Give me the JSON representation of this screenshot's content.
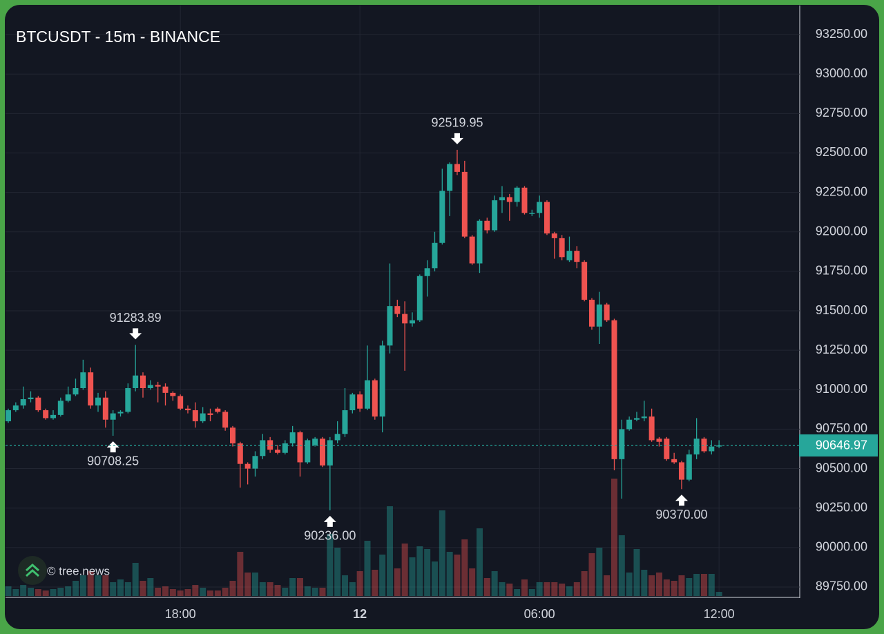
{
  "chart_data": {
    "type": "candlestick",
    "title": "BTCUSDT - 15m - BINANCE",
    "watermark": "© tree.news",
    "x": [
      "12:15",
      "12:30",
      "12:45",
      "13:00",
      "13:15",
      "13:30",
      "13:45",
      "14:00",
      "14:15",
      "14:30",
      "14:45",
      "15:00",
      "15:15",
      "15:30",
      "15:45",
      "16:00",
      "16:15",
      "16:30",
      "16:45",
      "17:00",
      "17:15",
      "17:30",
      "17:45",
      "18:00",
      "18:15",
      "18:30",
      "18:45",
      "19:00",
      "19:15",
      "19:30",
      "19:45",
      "20:00",
      "20:15",
      "20:30",
      "20:45",
      "21:00",
      "21:15",
      "21:30",
      "21:45",
      "22:00",
      "22:15",
      "22:30",
      "22:45",
      "23:00",
      "23:15",
      "23:30",
      "23:45",
      "00:00",
      "00:15",
      "00:30",
      "00:45",
      "01:00",
      "01:15",
      "01:30",
      "01:45",
      "02:00",
      "02:15",
      "02:30",
      "02:45",
      "03:00",
      "03:15",
      "03:30",
      "03:45",
      "04:00",
      "04:15",
      "04:30",
      "04:45",
      "05:00",
      "05:15",
      "05:30",
      "05:45",
      "06:00",
      "06:15",
      "06:30",
      "06:45",
      "07:00",
      "07:15",
      "07:30",
      "07:45",
      "08:00",
      "08:15",
      "08:30",
      "08:45",
      "09:00",
      "09:15",
      "09:30",
      "09:45",
      "10:00",
      "10:15",
      "10:30",
      "10:45",
      "11:00",
      "11:15",
      "11:30",
      "11:45",
      "12:00"
    ],
    "open": [
      90800,
      90870,
      90900,
      90940,
      90950,
      90870,
      90820,
      90840,
      90930,
      90970,
      91010,
      91110,
      90900,
      90950,
      90810,
      90850,
      90860,
      91010,
      91090,
      91010,
      91030,
      91020,
      90980,
      90960,
      90880,
      90870,
      90800,
      90850,
      90880,
      90860,
      90760,
      90660,
      90530,
      90500,
      90580,
      90680,
      90620,
      90600,
      90660,
      90730,
      90540,
      90650,
      90690,
      90520,
      90680,
      90720,
      90870,
      90970,
      90880,
      91060,
      90830,
      91280,
      91530,
      91480,
      91420,
      91440,
      91720,
      91770,
      91930,
      92260,
      92430,
      92380,
      91970,
      91800,
      92070,
      92010,
      92200,
      92220,
      92190,
      92280,
      92120,
      92120,
      92190,
      91990,
      91960,
      91820,
      91880,
      91810,
      91570,
      91400,
      91540,
      91440,
      90560,
      90750,
      90810,
      90820,
      90830,
      90690,
      90690,
      90560,
      90540,
      90430,
      90590,
      90690,
      90610,
      90640
    ],
    "high": [
      90880,
      90920,
      91020,
      90990,
      90960,
      90880,
      90870,
      90950,
      91020,
      91070,
      91190,
      91140,
      90980,
      90990,
      90870,
      90870,
      91040,
      91283.89,
      91110,
      91060,
      91050,
      91040,
      90990,
      90970,
      90900,
      90920,
      90890,
      90880,
      90890,
      90870,
      90770,
      90670,
      90540,
      90610,
      90720,
      90700,
      90650,
      90680,
      90770,
      90740,
      90690,
      90700,
      90700,
      90700,
      90800,
      91010,
      90980,
      90990,
      91280,
      91070,
      91310,
      91800,
      91570,
      91560,
      91490,
      91730,
      91820,
      92000,
      92400,
      92440,
      92519.95,
      92450,
      91980,
      92080,
      92090,
      92230,
      92290,
      92240,
      92290,
      92290,
      92140,
      92230,
      92200,
      92000,
      91980,
      91970,
      91910,
      91820,
      91580,
      91620,
      91550,
      91450,
      90810,
      90830,
      90860,
      90930,
      90880,
      90700,
      90700,
      90600,
      90550,
      90620,
      90820,
      90700,
      90680,
      90680
    ],
    "low": [
      90790,
      90860,
      90880,
      90920,
      90860,
      90810,
      90810,
      90830,
      90920,
      90960,
      91000,
      90880,
      90860,
      90760,
      90708.25,
      90830,
      90850,
      90990,
      90950,
      91000,
      90920,
      90900,
      90930,
      90870,
      90850,
      90760,
      90790,
      90800,
      90850,
      90740,
      90640,
      90380,
      90400,
      90450,
      90560,
      90600,
      90590,
      90590,
      90640,
      90450,
      90530,
      90640,
      90510,
      90236,
      90660,
      90700,
      90850,
      90860,
      90870,
      90810,
      90730,
      91230,
      91460,
      91120,
      91400,
      91430,
      91590,
      91750,
      91920,
      92100,
      92360,
      91960,
      91790,
      91740,
      91990,
      92000,
      92120,
      92070,
      92160,
      92110,
      92100,
      92090,
      91980,
      91830,
      91820,
      91810,
      91770,
      91560,
      91380,
      91290,
      91430,
      90490,
      90310,
      90740,
      90800,
      90800,
      90670,
      90640,
      90550,
      90530,
      90370,
      90420,
      90560,
      90600,
      90590,
      90630
    ],
    "close": [
      90870,
      90900,
      90940,
      90950,
      90870,
      90820,
      90840,
      90930,
      90970,
      91010,
      91110,
      90900,
      90950,
      90810,
      90850,
      90860,
      91010,
      91090,
      91010,
      91030,
      91020,
      90980,
      90960,
      90880,
      90870,
      90800,
      90850,
      90840,
      90860,
      90760,
      90660,
      90530,
      90500,
      90580,
      90680,
      90620,
      90600,
      90660,
      90730,
      90540,
      90680,
      90690,
      90520,
      90680,
      90720,
      90870,
      90970,
      90880,
      91060,
      90830,
      91280,
      91530,
      91480,
      91420,
      91440,
      91720,
      91770,
      91930,
      92260,
      92430,
      92380,
      91970,
      91800,
      92070,
      92010,
      92200,
      92220,
      92190,
      92280,
      92120,
      92120,
      92190,
      91990,
      91960,
      91840,
      91880,
      91810,
      91570,
      91400,
      91540,
      91440,
      90560,
      90750,
      90810,
      90820,
      90830,
      90680,
      90670,
      90560,
      90540,
      90430,
      90590,
      90690,
      90610,
      90640,
      90646.97
    ],
    "volume": [
      14,
      10,
      16,
      12,
      10,
      8,
      10,
      12,
      14,
      22,
      30,
      36,
      30,
      30,
      20,
      24,
      20,
      48,
      22,
      26,
      12,
      14,
      10,
      8,
      10,
      16,
      12,
      8,
      8,
      12,
      22,
      64,
      34,
      34,
      20,
      20,
      16,
      12,
      26,
      26,
      14,
      12,
      12,
      90,
      70,
      30,
      20,
      36,
      80,
      38,
      60,
      130,
      40,
      76,
      56,
      72,
      68,
      50,
      124,
      64,
      60,
      82,
      40,
      98,
      26,
      36,
      20,
      18,
      10,
      24,
      10,
      20,
      20,
      20,
      18,
      14,
      20,
      36,
      62,
      70,
      30,
      170,
      88,
      34,
      68,
      38,
      30,
      34,
      24,
      22,
      30,
      26,
      32,
      32,
      32,
      6
    ],
    "high_labels": [
      null,
      null,
      null,
      null,
      null,
      null,
      null,
      null,
      null,
      null,
      null,
      null,
      null,
      null,
      null,
      null,
      null,
      "91283.89",
      null,
      null,
      null,
      null,
      null,
      null,
      null,
      null,
      null,
      null,
      null,
      null,
      null,
      null,
      null,
      null,
      null,
      null,
      null,
      null,
      null,
      null,
      null,
      null,
      null,
      null,
      null,
      null,
      null,
      null,
      null,
      null,
      null,
      null,
      null,
      null,
      null,
      null,
      null,
      null,
      null,
      null,
      "92519.95",
      null,
      null,
      null,
      null,
      null,
      null,
      null,
      null,
      null,
      null,
      null,
      null,
      null,
      null,
      null,
      null,
      null,
      null,
      null,
      null,
      null,
      null,
      null,
      null,
      null,
      null,
      null,
      null,
      null,
      null,
      null,
      null,
      null,
      null,
      null
    ],
    "low_labels": [
      null,
      null,
      null,
      null,
      null,
      null,
      null,
      null,
      null,
      null,
      null,
      null,
      null,
      null,
      "90708.25",
      null,
      null,
      null,
      null,
      null,
      null,
      null,
      null,
      null,
      null,
      null,
      null,
      null,
      null,
      null,
      null,
      null,
      null,
      null,
      null,
      null,
      null,
      null,
      null,
      null,
      null,
      null,
      null,
      "90236.00",
      null,
      null,
      null,
      null,
      null,
      null,
      null,
      null,
      null,
      null,
      null,
      null,
      null,
      null,
      null,
      null,
      null,
      null,
      null,
      null,
      null,
      null,
      null,
      null,
      null,
      null,
      null,
      null,
      null,
      null,
      null,
      null,
      null,
      null,
      null,
      null,
      null,
      null,
      null,
      null,
      null,
      null,
      null,
      null,
      null,
      null,
      "90370.00",
      null,
      null,
      null,
      null,
      null
    ],
    "up_color": "#26a69a",
    "down_color": "#ef5350",
    "ylim": [
      89693,
      93434
    ],
    "yticks": [
      {
        "value": 89750,
        "label": "89750.00"
      },
      {
        "value": 90000,
        "label": "90000.00"
      },
      {
        "value": 90250,
        "label": "90250.00"
      },
      {
        "value": 90500,
        "label": "90500.00"
      },
      {
        "value": 90750,
        "label": "90750.00"
      },
      {
        "value": 91000,
        "label": "91000.00"
      },
      {
        "value": 91250,
        "label": "91250.00"
      },
      {
        "value": 91500,
        "label": "91500.00"
      },
      {
        "value": 91750,
        "label": "91750.00"
      },
      {
        "value": 92000,
        "label": "92000.00"
      },
      {
        "value": 92250,
        "label": "92250.00"
      },
      {
        "value": 92500,
        "label": "92500.00"
      },
      {
        "value": 92750,
        "label": "92750.00"
      },
      {
        "value": 93000,
        "label": "93000.00"
      },
      {
        "value": 93250,
        "label": "93250.00"
      }
    ],
    "xticks": [
      "18:00",
      {
        "value": "00:00",
        "label": "12"
      },
      "06:00",
      "12:00"
    ],
    "grid": true,
    "last_price_line": true
  }
}
